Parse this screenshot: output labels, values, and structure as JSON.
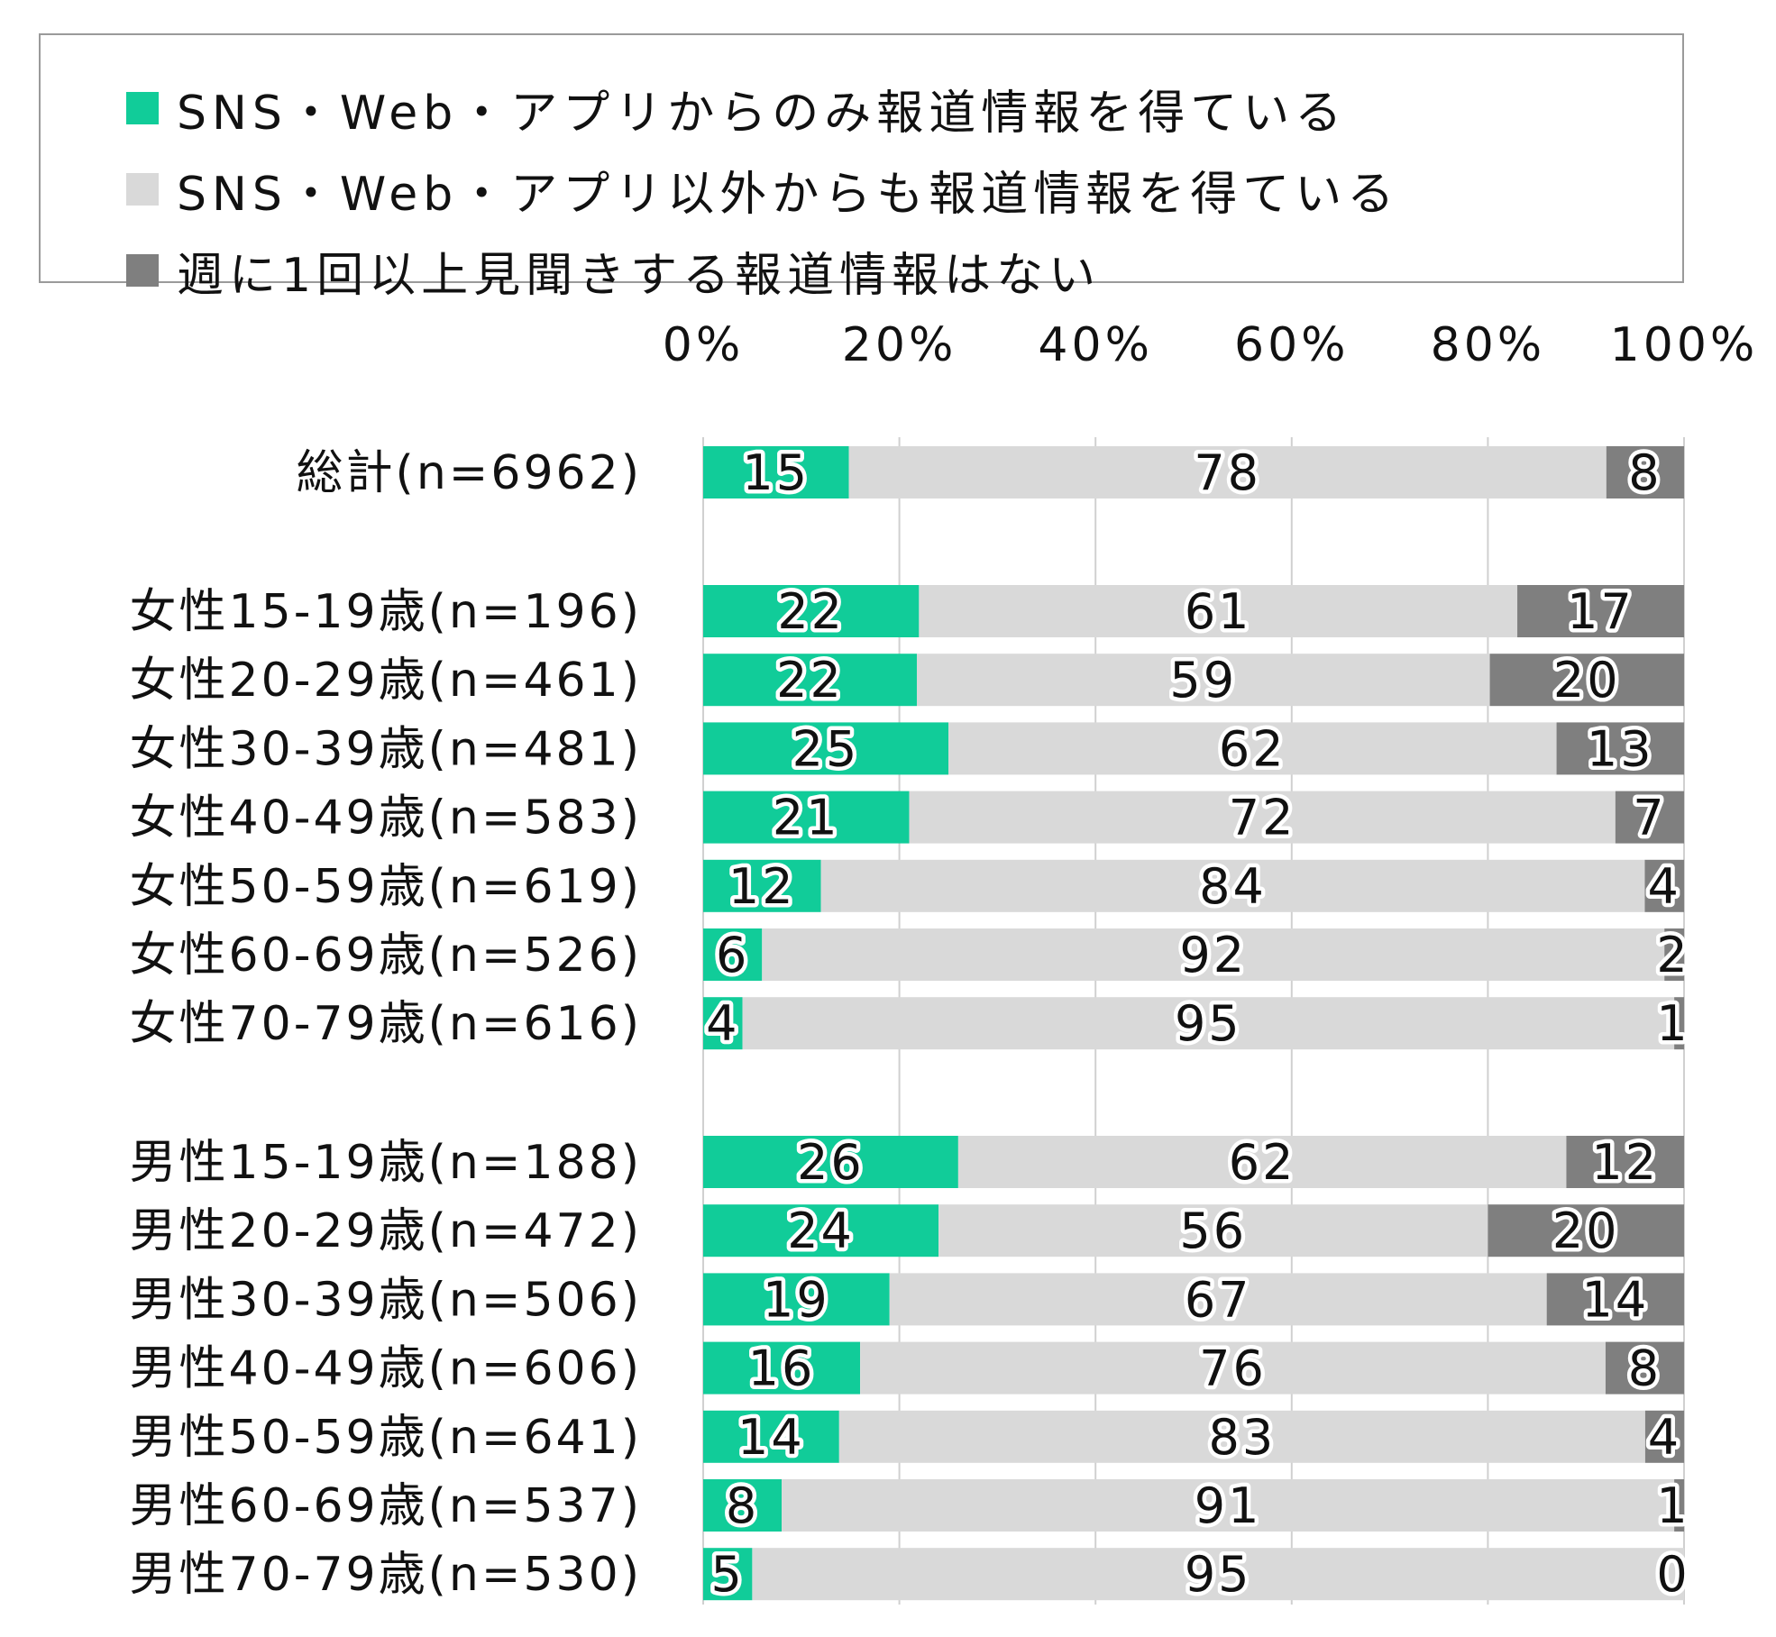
{
  "chart_data": {
    "type": "bar",
    "orientation": "horizontal",
    "stacked": true,
    "percent": true,
    "xlim": [
      0,
      100
    ],
    "ticks": [
      "0%",
      "20%",
      "40%",
      "60%",
      "80%",
      "100%"
    ],
    "grid": true,
    "legend_position": "top",
    "categories": [
      "総計(n=6962)",
      "女性15-19歳(n=196)",
      "女性20-29歳(n=461)",
      "女性30-39歳(n=481)",
      "女性40-49歳(n=583)",
      "女性50-59歳(n=619)",
      "女性60-69歳(n=526)",
      "女性70-79歳(n=616)",
      "男性15-19歳(n=188)",
      "男性20-29歳(n=472)",
      "男性30-39歳(n=506)",
      "男性40-49歳(n=606)",
      "男性50-59歳(n=641)",
      "男性60-69歳(n=537)",
      "男性70-79歳(n=530)"
    ],
    "series": [
      {
        "name": "SNS・Web・アプリからのみ報道情報を得ている",
        "color": "#11cc99",
        "values": [
          15,
          22,
          22,
          25,
          21,
          12,
          6,
          4,
          26,
          24,
          19,
          16,
          14,
          8,
          5
        ]
      },
      {
        "name": "SNS・Web・アプリ以外からも報道情報を得ている",
        "color": "#d9d9d9",
        "values": [
          78,
          61,
          59,
          62,
          72,
          84,
          92,
          95,
          62,
          56,
          67,
          76,
          83,
          91,
          95
        ]
      },
      {
        "name": "週に1回以上見聞きする報道情報はない",
        "color": "#7f7f7f",
        "values": [
          8,
          17,
          20,
          13,
          7,
          4,
          2,
          1,
          12,
          20,
          14,
          8,
          4,
          1,
          0
        ]
      }
    ]
  }
}
